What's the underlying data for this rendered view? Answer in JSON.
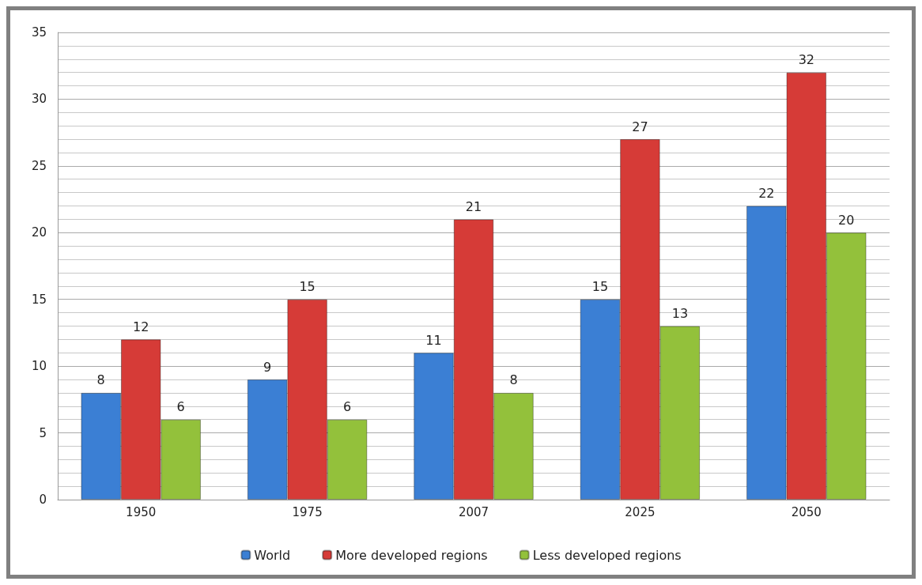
{
  "chart_data": {
    "type": "bar",
    "categories": [
      "1950",
      "1975",
      "2007",
      "2025",
      "2050"
    ],
    "series": [
      {
        "name": "World",
        "color": "#3b7fd4",
        "values": [
          8,
          9,
          11,
          15,
          22
        ]
      },
      {
        "name": "More developed regions",
        "color": "#d63b37",
        "values": [
          12,
          15,
          21,
          27,
          32
        ]
      },
      {
        "name": "Less developed regions",
        "color": "#93c13b",
        "values": [
          6,
          6,
          8,
          13,
          20
        ]
      }
    ],
    "ylim": [
      0,
      35
    ],
    "yticks": [
      0,
      5,
      10,
      15,
      20,
      25,
      30,
      35
    ],
    "grid": "y",
    "legend": "bottom",
    "data_labels": true
  }
}
